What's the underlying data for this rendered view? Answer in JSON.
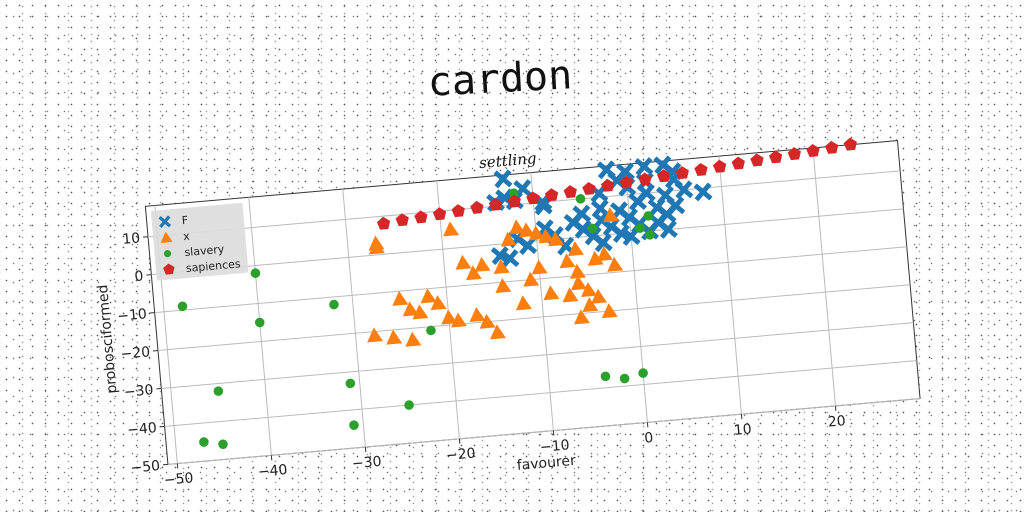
{
  "chart_data": {
    "type": "scatter",
    "title": "cardon",
    "subtitle": "settling",
    "xlabel": "favourer",
    "ylabel": "probosciformed",
    "xlim": [
      -51,
      29
    ],
    "ylim": [
      -50,
      18
    ],
    "xticks": [
      -50,
      -40,
      -30,
      -20,
      -10,
      0,
      10,
      20
    ],
    "yticks": [
      -50,
      -40,
      -30,
      -20,
      -10,
      0,
      10
    ],
    "grid": true,
    "legend_position": "top-left",
    "series": [
      {
        "name": "F",
        "marker": "X",
        "color": "#1f77b4",
        "points": [
          [
            -13,
            17
          ],
          [
            -11,
            14
          ],
          [
            -13,
            12
          ],
          [
            -12,
            11
          ],
          [
            -14,
            11
          ],
          [
            -9,
            10
          ],
          [
            -9,
            9
          ],
          [
            -3,
            11
          ],
          [
            -1,
            14
          ],
          [
            0,
            16
          ],
          [
            -2,
            17
          ],
          [
            2,
            17
          ],
          [
            4,
            17
          ],
          [
            5,
            15
          ],
          [
            2,
            13
          ],
          [
            5,
            13
          ],
          [
            0,
            12
          ],
          [
            2,
            10
          ],
          [
            6,
            10
          ],
          [
            8,
            9
          ],
          [
            4,
            9
          ],
          [
            1,
            8
          ],
          [
            -3,
            7
          ],
          [
            -5,
            6
          ],
          [
            -1,
            6
          ],
          [
            3,
            6
          ],
          [
            5,
            6
          ],
          [
            -6,
            4
          ],
          [
            -3,
            4
          ],
          [
            0,
            4
          ],
          [
            4,
            4
          ],
          [
            -9,
            3
          ],
          [
            -5,
            2
          ],
          [
            -2,
            2
          ],
          [
            1,
            2
          ],
          [
            3,
            2
          ],
          [
            -12,
            1
          ],
          [
            -8,
            1
          ],
          [
            -4,
            0
          ],
          [
            -1,
            0
          ],
          [
            2,
            0
          ],
          [
            4,
            0
          ],
          [
            -11,
            -1
          ],
          [
            -7,
            -2
          ],
          [
            -3,
            -2
          ],
          [
            0,
            -1
          ],
          [
            -14,
            -3
          ],
          [
            -13,
            -4
          ]
        ]
      },
      {
        "name": "x",
        "marker": "triangle",
        "color": "#ff7f0e",
        "points": [
          [
            -27,
            3
          ],
          [
            -27,
            2
          ],
          [
            -19,
            5
          ],
          [
            -12,
            4
          ],
          [
            -11,
            3
          ],
          [
            -10,
            2
          ],
          [
            -13,
            1
          ],
          [
            -9,
            1
          ],
          [
            -8,
            0
          ],
          [
            -18,
            -4
          ],
          [
            -16,
            -5
          ],
          [
            -14,
            -6
          ],
          [
            -17,
            -7
          ],
          [
            -6,
            -3
          ],
          [
            -7,
            -6
          ],
          [
            -3,
            -5
          ],
          [
            -4,
            -6
          ],
          [
            -2,
            -8
          ],
          [
            -6,
            -9
          ],
          [
            -10,
            -7
          ],
          [
            -11,
            -10
          ],
          [
            -14,
            -11
          ],
          [
            -25,
            -12
          ],
          [
            -22,
            -12
          ],
          [
            -24,
            -15
          ],
          [
            -21,
            -14
          ],
          [
            -23,
            -16
          ],
          [
            -20,
            -18
          ],
          [
            -19,
            -19
          ],
          [
            -17,
            -18
          ],
          [
            -16,
            -20
          ],
          [
            -15,
            -23
          ],
          [
            -24,
            -23
          ],
          [
            -26,
            -22
          ],
          [
            -28,
            -21
          ],
          [
            -7,
            -15
          ],
          [
            -6,
            -12
          ],
          [
            -5,
            -14
          ],
          [
            -4,
            -16
          ],
          [
            -5,
            -18
          ],
          [
            -3,
            -20
          ],
          [
            -6,
            -21
          ],
          [
            -9,
            -14
          ],
          [
            -12,
            -16
          ],
          [
            -2,
            5
          ]
        ]
      },
      {
        "name": "slavery",
        "marker": "circle",
        "color": "#2ca02c",
        "points": [
          [
            -12,
            13
          ],
          [
            -5,
            10
          ],
          [
            2,
            4
          ],
          [
            -4,
            2
          ],
          [
            1,
            1
          ],
          [
            2,
            -1
          ],
          [
            -48,
            -9
          ],
          [
            -40,
            -2
          ],
          [
            -40,
            -15
          ],
          [
            -32,
            -12
          ],
          [
            -45,
            -32
          ],
          [
            -31,
            -33
          ],
          [
            -47,
            -45
          ],
          [
            -45,
            -46
          ],
          [
            -31,
            -44
          ],
          [
            -25,
            -40
          ],
          [
            -22,
            -21
          ],
          [
            -4,
            -37
          ],
          [
            -2,
            -38
          ],
          [
            0,
            -37
          ]
        ]
      },
      {
        "name": "sapiences",
        "marker": "pentagon",
        "color": "#d62728",
        "points": [
          [
            -26,
            8
          ],
          [
            -24,
            8.5
          ],
          [
            -22,
            8.8
          ],
          [
            -20,
            9.2
          ],
          [
            -18,
            9.6
          ],
          [
            -16,
            10
          ],
          [
            -14,
            10.4
          ],
          [
            -12,
            10.8
          ],
          [
            -10,
            11.2
          ],
          [
            -8,
            11.6
          ],
          [
            -6,
            12
          ],
          [
            -4,
            12.4
          ],
          [
            -2,
            12.8
          ],
          [
            0,
            13.2
          ],
          [
            2,
            13.6
          ],
          [
            4,
            14
          ],
          [
            6,
            14.4
          ],
          [
            8,
            14.8
          ],
          [
            10,
            15.2
          ],
          [
            12,
            15.6
          ],
          [
            14,
            16
          ],
          [
            16,
            16.4
          ],
          [
            18,
            16.8
          ],
          [
            20,
            17.2
          ],
          [
            22,
            17.6
          ],
          [
            24,
            18
          ]
        ]
      }
    ]
  }
}
